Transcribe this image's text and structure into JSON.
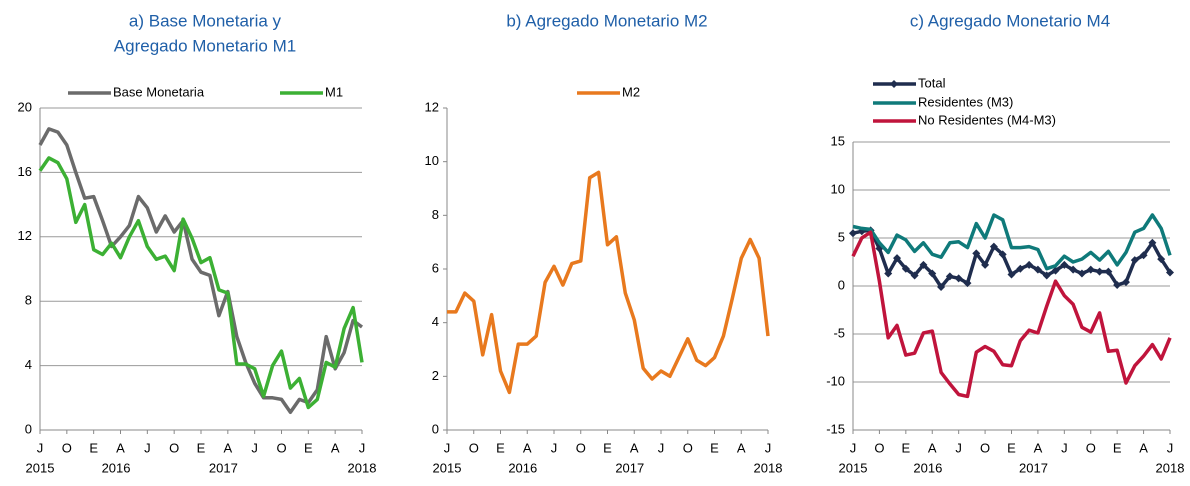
{
  "chart_data": [
    {
      "type": "line",
      "title": [
        "a) Base Monetaria y",
        "Agregado Monetario M1"
      ],
      "categories": [
        "J",
        null,
        null,
        "O",
        null,
        null,
        "E",
        null,
        null,
        "A",
        null,
        null,
        "J",
        null,
        null,
        "O",
        null,
        null,
        "E",
        null,
        null,
        "A",
        null,
        null,
        "J",
        null,
        null,
        "O",
        null,
        null,
        "E",
        null,
        null,
        "A",
        null,
        null,
        "J"
      ],
      "years": [
        "2015",
        "2016",
        "2017",
        "2018"
      ],
      "ylim": [
        0,
        20
      ],
      "yticks": [
        0,
        4,
        8,
        12,
        16,
        20
      ],
      "grid": true,
      "series": [
        {
          "name": "Base Monetaria",
          "color": "#6b6b6b",
          "values": [
            17.7,
            18.7,
            18.5,
            17.7,
            16.0,
            14.4,
            14.5,
            13.0,
            11.4,
            12.0,
            12.7,
            14.5,
            13.8,
            12.3,
            13.3,
            12.3,
            13.0,
            10.6,
            9.8,
            9.6,
            7.1,
            8.6,
            5.8,
            4.2,
            2.9,
            2.0,
            2.0,
            1.9,
            1.1,
            1.9,
            1.7,
            2.5,
            5.8,
            3.8,
            4.8,
            6.8,
            6.4
          ]
        },
        {
          "name": "M1",
          "color": "#3cb034",
          "values": [
            16.1,
            16.9,
            16.6,
            15.6,
            12.9,
            14.0,
            11.2,
            10.9,
            11.6,
            10.7,
            12.0,
            13.0,
            11.4,
            10.6,
            10.8,
            9.9,
            13.1,
            11.9,
            10.4,
            10.7,
            8.7,
            8.5,
            4.1,
            4.1,
            3.8,
            2.1,
            4.0,
            4.9,
            2.6,
            3.2,
            1.4,
            1.9,
            4.2,
            3.9,
            6.3,
            7.6,
            4.2
          ]
        }
      ]
    },
    {
      "type": "line",
      "title": [
        "b) Agregado Monetario M2"
      ],
      "categories": [
        "J",
        null,
        null,
        "O",
        null,
        null,
        "E",
        null,
        null,
        "A",
        null,
        null,
        "J",
        null,
        null,
        "O",
        null,
        null,
        "E",
        null,
        null,
        "A",
        null,
        null,
        "J",
        null,
        null,
        "O",
        null,
        null,
        "E",
        null,
        null,
        "A",
        null,
        null,
        "J"
      ],
      "years": [
        "2015",
        "2016",
        "2017",
        "2018"
      ],
      "ylim": [
        0,
        12
      ],
      "yticks": [
        0,
        2,
        4,
        6,
        8,
        10,
        12
      ],
      "grid": false,
      "series": [
        {
          "name": "M2",
          "color": "#e8791e",
          "values": [
            4.4,
            4.4,
            5.1,
            4.8,
            2.8,
            4.3,
            2.2,
            1.4,
            3.2,
            3.2,
            3.5,
            5.5,
            6.1,
            5.4,
            6.2,
            6.3,
            9.4,
            9.6,
            6.9,
            7.2,
            5.1,
            4.1,
            2.3,
            1.9,
            2.2,
            2.0,
            2.7,
            3.4,
            2.6,
            2.4,
            2.7,
            3.5,
            4.9,
            6.4,
            7.1,
            6.4,
            3.5
          ]
        }
      ]
    },
    {
      "type": "line",
      "title": [
        "c) Agregado Monetario M4"
      ],
      "categories": [
        "J",
        null,
        null,
        "O",
        null,
        null,
        "E",
        null,
        null,
        "A",
        null,
        null,
        "J",
        null,
        null,
        "O",
        null,
        null,
        "E",
        null,
        null,
        "A",
        null,
        null,
        "J",
        null,
        null,
        "O",
        null,
        null,
        "E",
        null,
        null,
        "A",
        null,
        null,
        "J"
      ],
      "years": [
        "2015",
        "2016",
        "2017",
        "2018"
      ],
      "ylim": [
        -15,
        15
      ],
      "yticks": [
        -15,
        -10,
        -5,
        0,
        5,
        10,
        15
      ],
      "grid": true,
      "series": [
        {
          "name": "Total",
          "color": "#1f2d4e",
          "marker": "diamond",
          "values": [
            5.5,
            5.7,
            5.8,
            3.9,
            1.3,
            2.9,
            1.8,
            1.1,
            2.2,
            1.3,
            -0.1,
            1.0,
            0.8,
            0.3,
            3.4,
            2.2,
            4.1,
            3.3,
            1.2,
            1.8,
            2.2,
            1.7,
            1.1,
            1.6,
            2.2,
            1.7,
            1.3,
            1.7,
            1.5,
            1.5,
            0.1,
            0.4,
            2.7,
            3.2,
            4.5,
            2.8,
            1.4
          ]
        },
        {
          "name": "Residentes (M3)",
          "color": "#0f7a7a",
          "values": [
            6.2,
            6.0,
            5.9,
            4.5,
            3.5,
            5.3,
            4.8,
            3.6,
            4.5,
            3.3,
            3.0,
            4.5,
            4.6,
            4.0,
            6.5,
            5.0,
            7.4,
            6.9,
            4.0,
            4.0,
            4.1,
            3.8,
            1.8,
            2.1,
            3.1,
            2.5,
            2.8,
            3.5,
            2.7,
            3.6,
            2.2,
            3.5,
            5.6,
            6.0,
            7.4,
            6.0,
            3.2
          ]
        },
        {
          "name": "No Residentes (M4-M3)",
          "color": "#c0143c",
          "values": [
            3.1,
            5.0,
            5.6,
            0.5,
            -5.4,
            -4.1,
            -7.2,
            -7.0,
            -4.9,
            -4.7,
            -9.0,
            -10.2,
            -11.3,
            -11.5,
            -6.9,
            -6.3,
            -6.8,
            -8.2,
            -8.3,
            -5.7,
            -4.6,
            -4.9,
            -2.1,
            0.5,
            -1.0,
            -1.9,
            -4.3,
            -4.8,
            -2.8,
            -6.8,
            -6.7,
            -10.1,
            -8.3,
            -7.3,
            -6.1,
            -7.6,
            -5.4
          ]
        }
      ]
    }
  ]
}
